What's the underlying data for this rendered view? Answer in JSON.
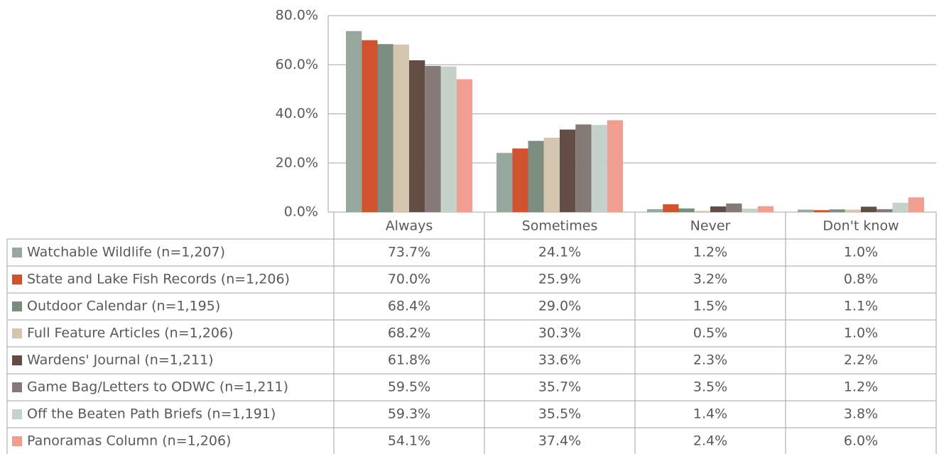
{
  "chart_data": {
    "type": "bar",
    "categories": [
      "Always",
      "Sometimes",
      "Never",
      "Don't know"
    ],
    "ylim": [
      0,
      80
    ],
    "yticks": [
      {
        "value": 0,
        "label": "0.0%"
      },
      {
        "value": 20,
        "label": "20.0%"
      },
      {
        "value": 40,
        "label": "40.0%"
      },
      {
        "value": 60,
        "label": "60.0%"
      },
      {
        "value": 80,
        "label": "80.0%"
      }
    ],
    "grid": true,
    "series": [
      {
        "name": "Watchable Wildlife (n=1,207)",
        "color": "#97a89e",
        "values": [
          73.7,
          24.1,
          1.2,
          1.0
        ],
        "value_labels": [
          "73.7%",
          "24.1%",
          "1.2%",
          "1.0%"
        ]
      },
      {
        "name": "State and Lake Fish Records (n=1,206)",
        "color": "#d0522f",
        "values": [
          70.0,
          25.9,
          3.2,
          0.8
        ],
        "value_labels": [
          "70.0%",
          "25.9%",
          "3.2%",
          "0.8%"
        ]
      },
      {
        "name": "Outdoor Calendar (n=1,195)",
        "color": "#7d8c80",
        "values": [
          68.4,
          29.0,
          1.5,
          1.1
        ],
        "value_labels": [
          "68.4%",
          "29.0%",
          "1.5%",
          "1.1%"
        ]
      },
      {
        "name": "Full Feature Articles (n=1,206)",
        "color": "#d3c5ae",
        "values": [
          68.2,
          30.3,
          0.5,
          1.0
        ],
        "value_labels": [
          "68.2%",
          "30.3%",
          "0.5%",
          "1.0%"
        ]
      },
      {
        "name": "Wardens' Journal (n=1,211)",
        "color": "#634c43",
        "values": [
          61.8,
          33.6,
          2.3,
          2.2
        ],
        "value_labels": [
          "61.8%",
          "33.6%",
          "2.3%",
          "2.2%"
        ]
      },
      {
        "name": "Game Bag/Letters to ODWC (n=1,211)",
        "color": "#857a77",
        "values": [
          59.5,
          35.7,
          3.5,
          1.2
        ],
        "value_labels": [
          "59.5%",
          "35.7%",
          "3.5%",
          "1.2%"
        ]
      },
      {
        "name": "Off the Beaten Path Briefs (n=1,191)",
        "color": "#c5d2cc",
        "values": [
          59.3,
          35.5,
          1.4,
          3.8
        ],
        "value_labels": [
          "59.3%",
          "35.5%",
          "1.4%",
          "3.8%"
        ]
      },
      {
        "name": "Panoramas Column (n=1,206)",
        "color": "#f09e91",
        "values": [
          54.1,
          37.4,
          2.4,
          6.0
        ],
        "value_labels": [
          "54.1%",
          "37.4%",
          "2.4%",
          "6.0%"
        ]
      }
    ]
  }
}
